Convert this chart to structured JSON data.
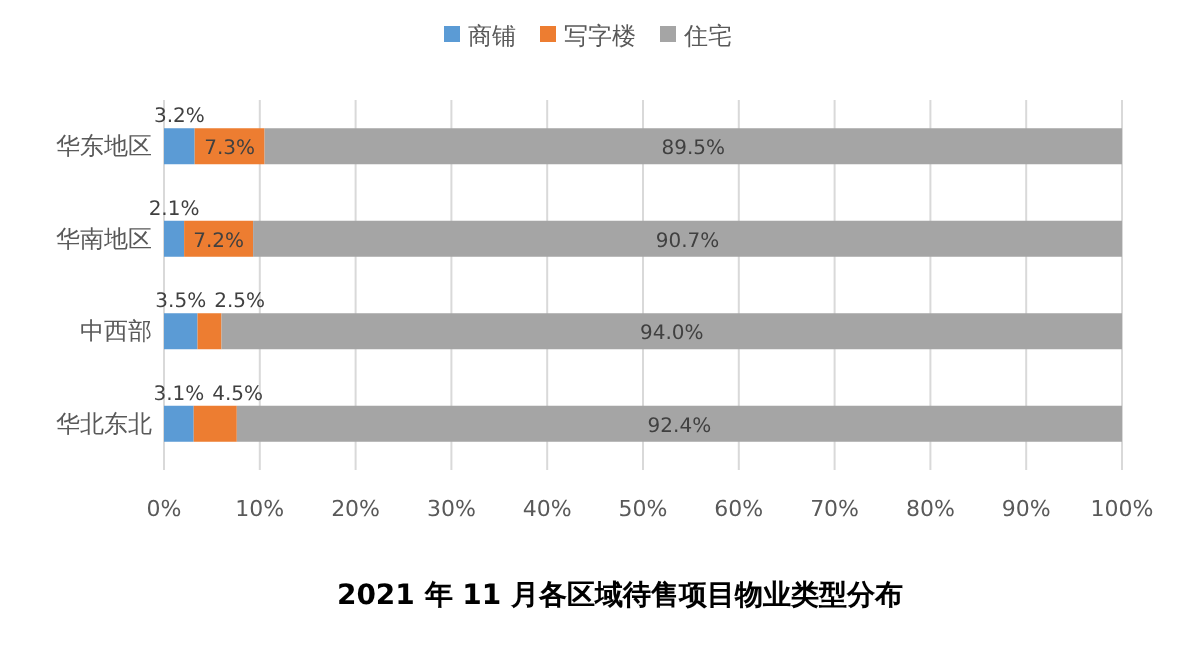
{
  "chart_data": {
    "type": "bar",
    "orientation": "horizontal",
    "stacked": true,
    "title": "2021 年 11 月各区域待售项目物业类型分布",
    "categories": [
      "华东地区",
      "华南地区",
      "中西部",
      "华北东北"
    ],
    "series": [
      {
        "name": "商铺",
        "color": "#5b9bd5",
        "values": [
          3.2,
          2.1,
          3.5,
          3.1
        ],
        "value_labels": [
          "3.2%",
          "2.1%",
          "3.5%",
          "3.1%"
        ]
      },
      {
        "name": "写字楼",
        "color": "#ed7d31",
        "values": [
          7.3,
          7.2,
          2.5,
          4.5
        ],
        "value_labels": [
          "7.3%",
          "7.2%",
          "2.5%",
          "4.5%"
        ]
      },
      {
        "name": "住宅",
        "color": "#a5a5a5",
        "values": [
          89.5,
          90.7,
          94.0,
          92.4
        ],
        "value_labels": [
          "89.5%",
          "90.7%",
          "94.0%",
          "92.4%"
        ]
      }
    ],
    "xlim": [
      0,
      100
    ],
    "xticks": [
      {
        "value": 0,
        "label": "0%"
      },
      {
        "value": 10,
        "label": "10%"
      },
      {
        "value": 20,
        "label": "20%"
      },
      {
        "value": 30,
        "label": "30%"
      },
      {
        "value": 40,
        "label": "40%"
      },
      {
        "value": 50,
        "label": "50%"
      },
      {
        "value": 60,
        "label": "60%"
      },
      {
        "value": 70,
        "label": "70%"
      },
      {
        "value": 80,
        "label": "80%"
      },
      {
        "value": 90,
        "label": "90%"
      },
      {
        "value": 100,
        "label": "100%"
      }
    ],
    "grid": "x",
    "legend": "top"
  }
}
